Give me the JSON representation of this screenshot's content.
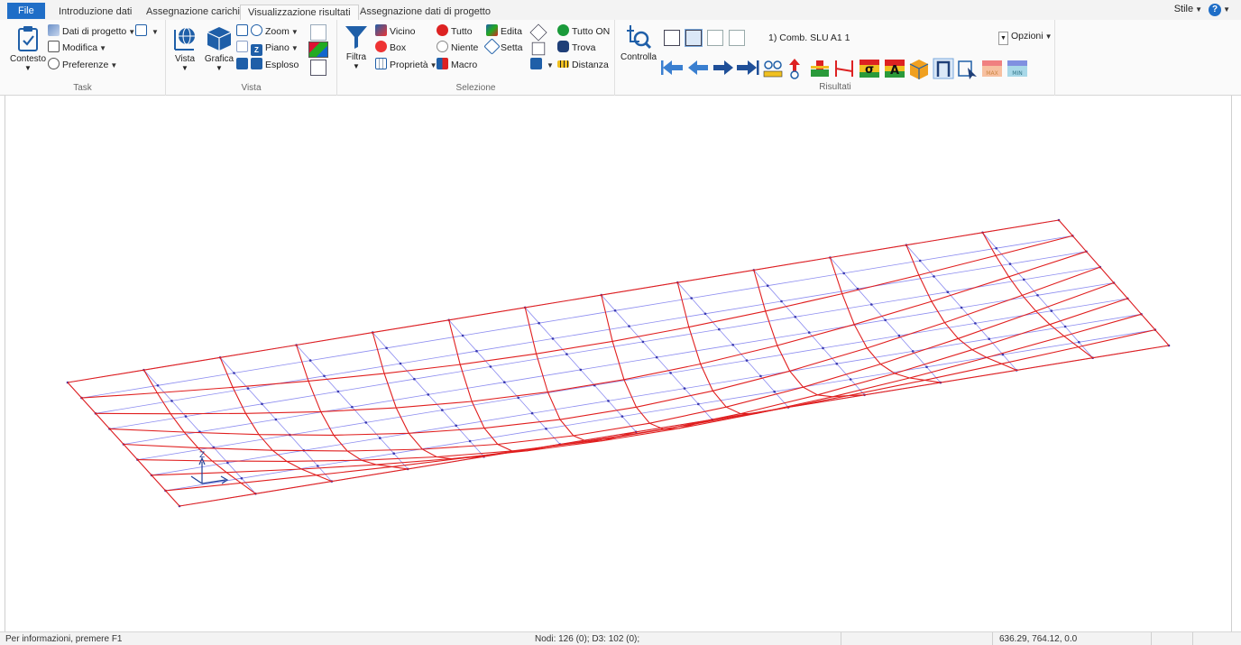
{
  "tabs": [
    "File",
    "Introduzione dati",
    "Assegnazione carichi",
    "Visualizzazione risultati",
    "Assegnazione dati di progetto"
  ],
  "active_tab": "Visualizzazione risultati",
  "style_label": "Stile",
  "help_glyph": "?",
  "groups": {
    "task": {
      "title": "Task",
      "contesto": "Contesto",
      "dati_progetto": "Dati di progetto",
      "modifica": "Modifica",
      "preferenze": "Preferenze"
    },
    "vista": {
      "title": "Vista",
      "vista": "Vista",
      "grafica": "Grafica",
      "zoom": "Zoom",
      "piano": "Piano",
      "esploso": "Esploso"
    },
    "selezione": {
      "title": "Selezione",
      "filtra": "Filtra",
      "vicino": "Vicino",
      "box": "Box",
      "proprieta": "Proprietà",
      "tutto": "Tutto",
      "niente": "Niente",
      "macro": "Macro",
      "edita": "Edita",
      "setta": "Setta",
      "tutto_on": "Tutto ON",
      "trova": "Trova",
      "distanza": "Distanza"
    },
    "risultati": {
      "title": "Risultati",
      "controlla": "Controlla",
      "combination": "1) Comb. SLU A1 1",
      "opzioni": "Opzioni",
      "max_label": "MAX",
      "min_label": "MIN",
      "sigma_label": "σ",
      "a_label": "A"
    }
  },
  "axis_label": "Z",
  "colors": {
    "undeformed_mesh": "#8c8cf0",
    "deformed_mesh": "#e01e1e",
    "accent": "#1f6ec7"
  },
  "status": {
    "info": "Per informazioni, premere F1",
    "counts": "Nodi: 126 (0); D3: 102 (0);",
    "coords": "636.29, 764.12, 0.0"
  }
}
